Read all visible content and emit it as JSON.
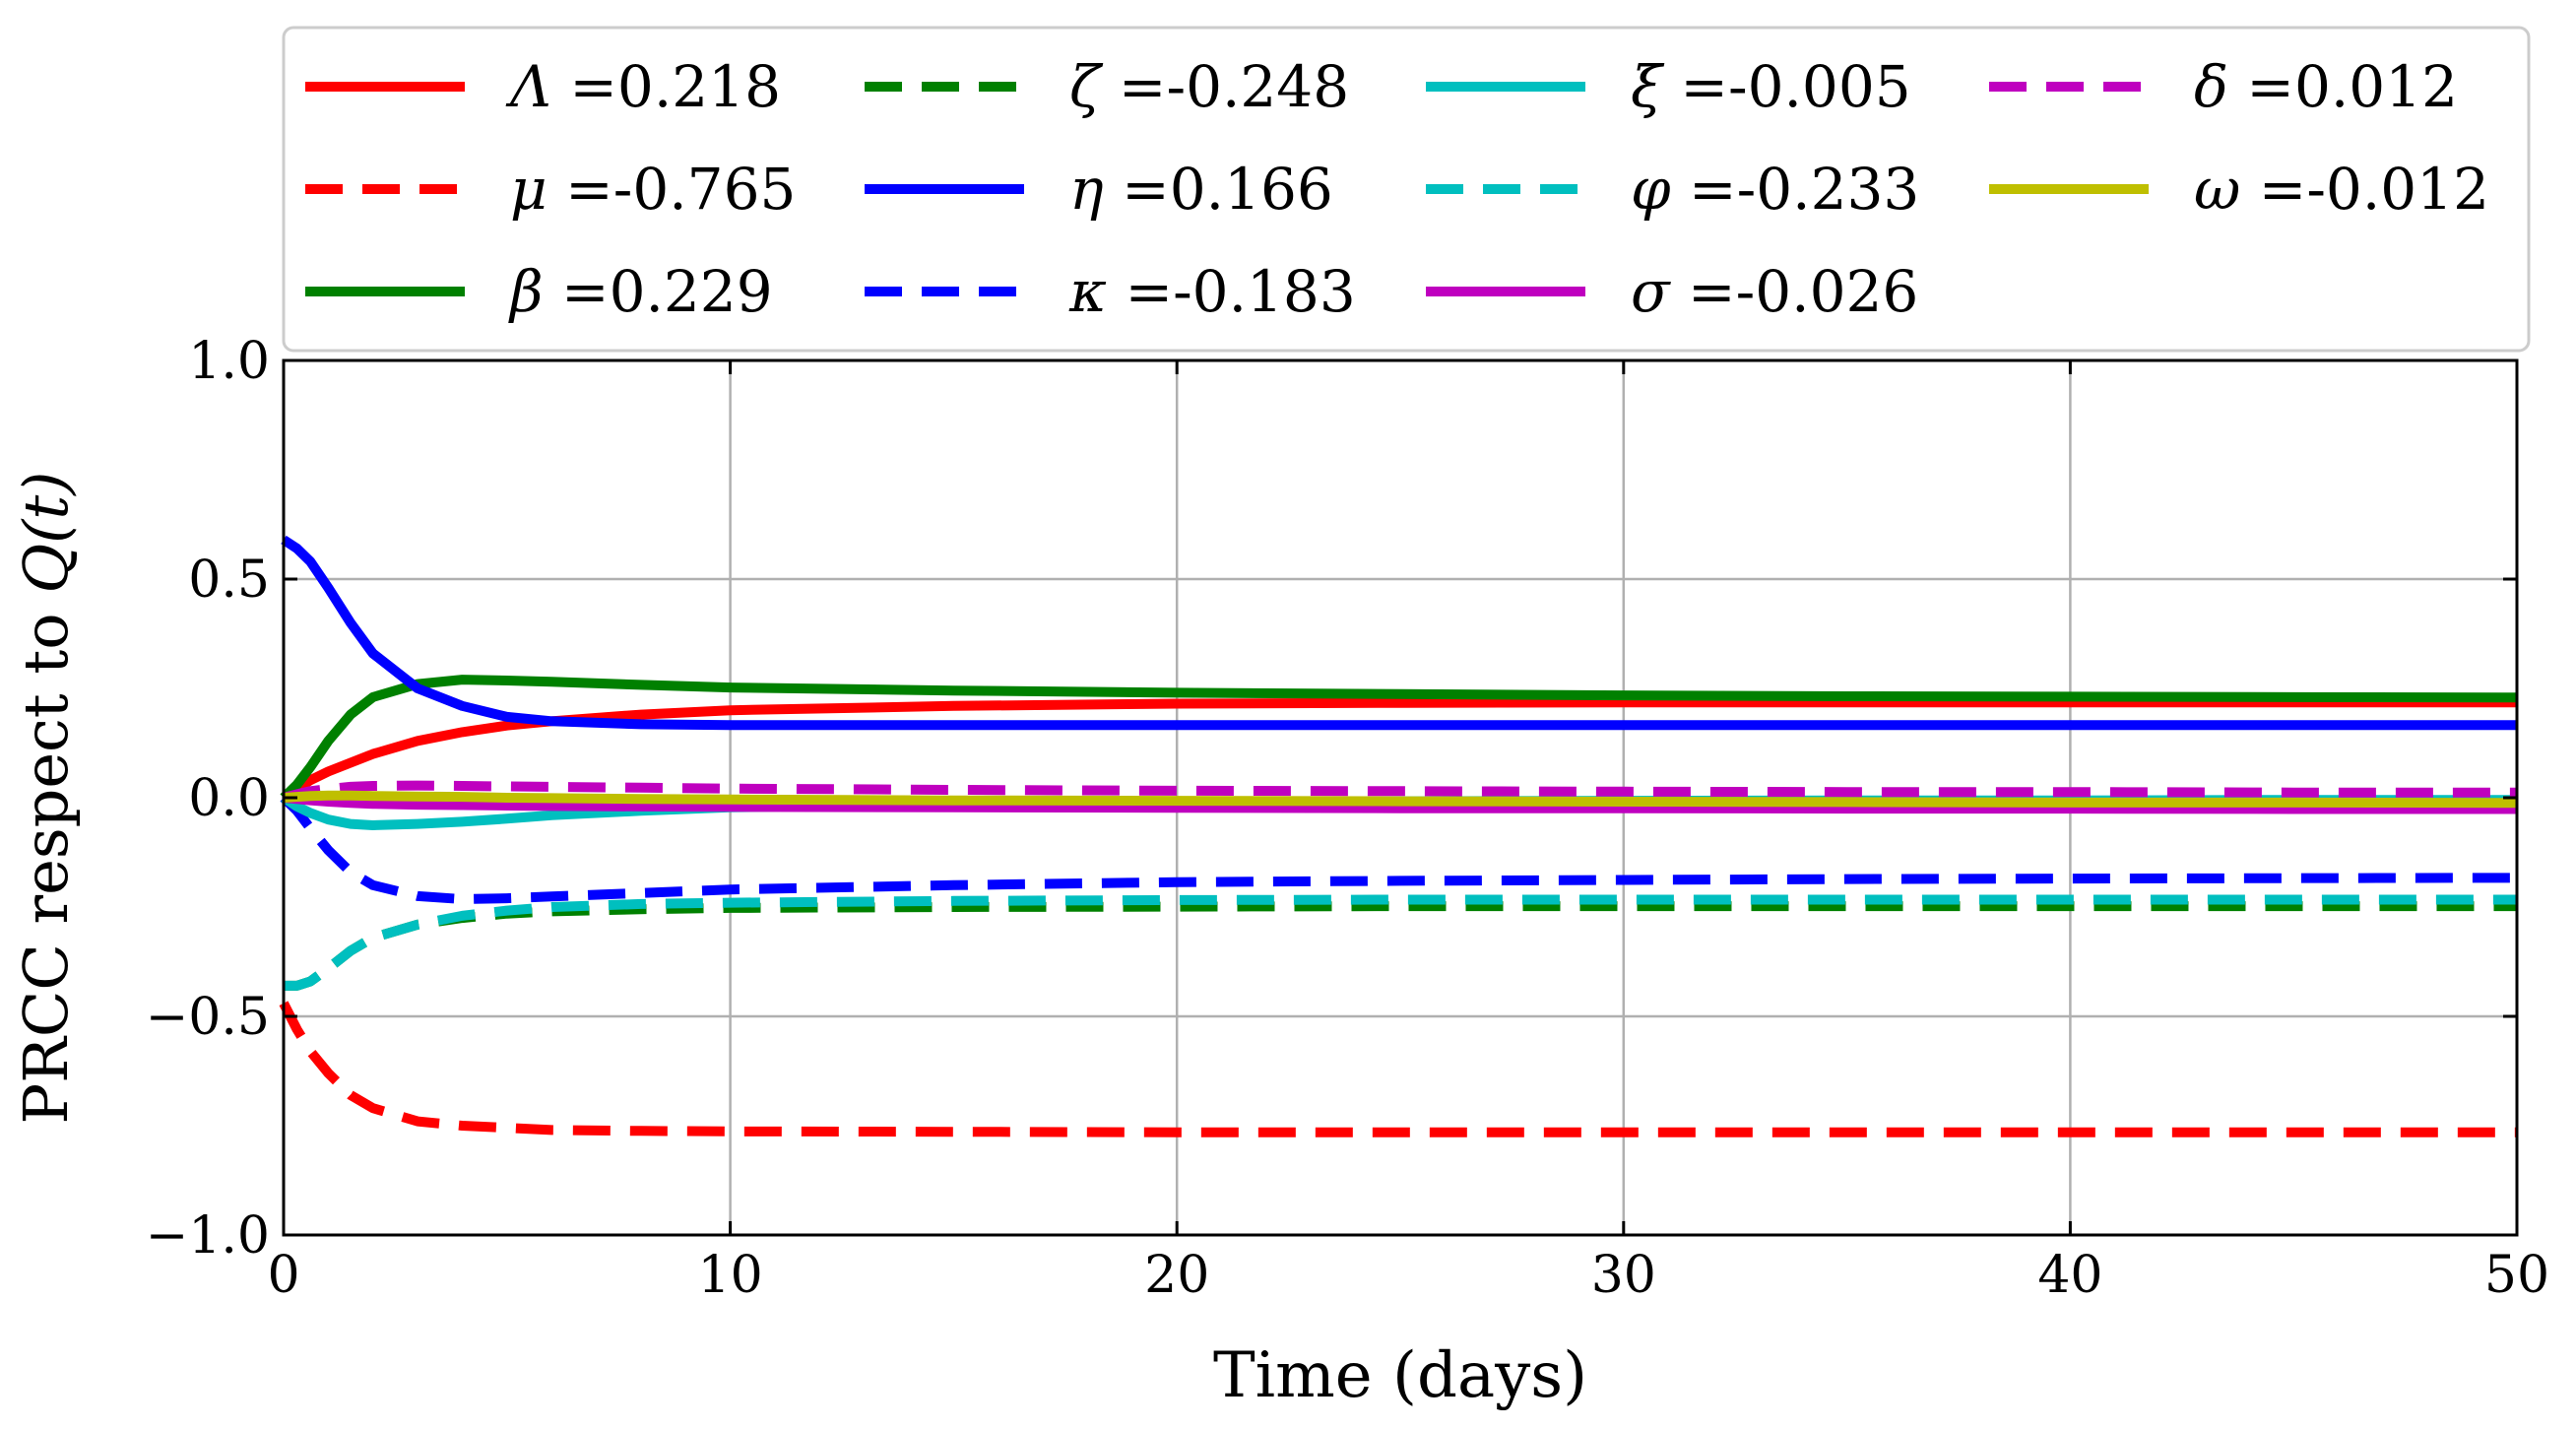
{
  "chart_data": {
    "type": "line",
    "xlabel_text": "Time (days)",
    "ylabel_text": "PRCC respect to ",
    "ylabel_math": "Q(t)",
    "xlim": [
      0,
      50
    ],
    "ylim": [
      -1.0,
      1.0
    ],
    "xticks": [
      0,
      10,
      20,
      30,
      40,
      50
    ],
    "xtick_labels": [
      "0",
      "10",
      "20",
      "30",
      "40",
      "50"
    ],
    "yticks": [
      -1.0,
      -0.5,
      0.0,
      0.5,
      1.0
    ],
    "ytick_labels": [
      "−1.0",
      "−0.5",
      "0.0",
      "0.5",
      "1.0"
    ],
    "grid": true,
    "legend_placement": "top, above plot, 4 columns",
    "x": [
      0,
      0.3,
      0.6,
      1,
      1.5,
      2,
      3,
      4,
      5,
      6,
      8,
      10,
      15,
      20,
      25,
      30,
      35,
      40,
      45,
      50
    ],
    "series": [
      {
        "name": "Λ =0.218",
        "symbol": "Λ",
        "value": "=0.218",
        "color": "#ff0000",
        "dash": "solid",
        "values": [
          0.0,
          0.02,
          0.04,
          0.06,
          0.08,
          0.1,
          0.13,
          0.15,
          0.165,
          0.175,
          0.19,
          0.2,
          0.21,
          0.215,
          0.217,
          0.218,
          0.218,
          0.218,
          0.218,
          0.218
        ]
      },
      {
        "name": "μ =-0.765",
        "symbol": "μ",
        "value": "=-0.765",
        "color": "#ff0000",
        "dash": "dashed",
        "values": [
          -0.47,
          -0.53,
          -0.58,
          -0.63,
          -0.68,
          -0.71,
          -0.74,
          -0.75,
          -0.755,
          -0.76,
          -0.762,
          -0.763,
          -0.764,
          -0.765,
          -0.765,
          -0.765,
          -0.765,
          -0.765,
          -0.765,
          -0.765
        ]
      },
      {
        "name": "β =0.229",
        "symbol": "β",
        "value": "=0.229",
        "color": "#008000",
        "dash": "solid",
        "values": [
          0.0,
          0.03,
          0.07,
          0.13,
          0.19,
          0.23,
          0.26,
          0.27,
          0.268,
          0.265,
          0.258,
          0.252,
          0.245,
          0.24,
          0.237,
          0.234,
          0.232,
          0.231,
          0.23,
          0.229
        ]
      },
      {
        "name": "ζ =-0.248",
        "symbol": "ζ",
        "value": "=-0.248",
        "color": "#008000",
        "dash": "dashed",
        "values": [
          -0.43,
          -0.43,
          -0.42,
          -0.39,
          -0.35,
          -0.32,
          -0.29,
          -0.275,
          -0.265,
          -0.26,
          -0.255,
          -0.252,
          -0.25,
          -0.249,
          -0.248,
          -0.248,
          -0.248,
          -0.248,
          -0.248,
          -0.248
        ]
      },
      {
        "name": "η =0.166",
        "symbol": "η",
        "value": "=0.166",
        "color": "#0000ff",
        "dash": "solid",
        "values": [
          0.59,
          0.57,
          0.54,
          0.48,
          0.4,
          0.33,
          0.25,
          0.21,
          0.185,
          0.175,
          0.168,
          0.166,
          0.166,
          0.166,
          0.166,
          0.166,
          0.166,
          0.166,
          0.166,
          0.166
        ]
      },
      {
        "name": "κ =-0.183",
        "symbol": "κ",
        "value": "=-0.183",
        "color": "#0000ff",
        "dash": "dashed",
        "values": [
          0.0,
          -0.03,
          -0.07,
          -0.12,
          -0.17,
          -0.2,
          -0.225,
          -0.232,
          -0.23,
          -0.226,
          -0.218,
          -0.21,
          -0.2,
          -0.193,
          -0.19,
          -0.188,
          -0.186,
          -0.185,
          -0.184,
          -0.183
        ]
      },
      {
        "name": "ξ =-0.005",
        "symbol": "ξ",
        "value": "=-0.005",
        "color": "#00bfbf",
        "dash": "solid",
        "values": [
          0.0,
          -0.02,
          -0.035,
          -0.05,
          -0.06,
          -0.063,
          -0.06,
          -0.055,
          -0.048,
          -0.04,
          -0.03,
          -0.022,
          -0.014,
          -0.01,
          -0.008,
          -0.007,
          -0.006,
          -0.006,
          -0.005,
          -0.005
        ]
      },
      {
        "name": "φ =-0.233",
        "symbol": "φ",
        "value": "=-0.233",
        "color": "#00bfbf",
        "dash": "dashed",
        "values": [
          -0.43,
          -0.43,
          -0.42,
          -0.39,
          -0.35,
          -0.32,
          -0.29,
          -0.27,
          -0.258,
          -0.25,
          -0.243,
          -0.24,
          -0.236,
          -0.234,
          -0.233,
          -0.233,
          -0.233,
          -0.233,
          -0.233,
          -0.233
        ]
      },
      {
        "name": "σ =-0.026",
        "symbol": "σ",
        "value": "=-0.026",
        "color": "#bf00bf",
        "dash": "solid",
        "values": [
          0.0,
          -0.003,
          -0.006,
          -0.009,
          -0.012,
          -0.014,
          -0.016,
          -0.017,
          -0.018,
          -0.019,
          -0.02,
          -0.021,
          -0.022,
          -0.023,
          -0.024,
          -0.024,
          -0.025,
          -0.025,
          -0.026,
          -0.026
        ]
      },
      {
        "name": "δ =0.012",
        "symbol": "δ",
        "value": "=0.012",
        "color": "#bf00bf",
        "dash": "dashed",
        "values": [
          0.0,
          0.008,
          0.015,
          0.02,
          0.025,
          0.027,
          0.028,
          0.027,
          0.026,
          0.025,
          0.023,
          0.021,
          0.018,
          0.016,
          0.015,
          0.014,
          0.013,
          0.013,
          0.012,
          0.012
        ]
      },
      {
        "name": "ω =-0.012",
        "symbol": "ω",
        "value": "=-0.012",
        "color": "#bfbf00",
        "dash": "solid",
        "values": [
          0.0,
          0.002,
          0.004,
          0.005,
          0.005,
          0.004,
          0.003,
          0.002,
          0.0,
          -0.001,
          -0.003,
          -0.004,
          -0.006,
          -0.007,
          -0.008,
          -0.009,
          -0.01,
          -0.011,
          -0.011,
          -0.012
        ]
      }
    ]
  }
}
